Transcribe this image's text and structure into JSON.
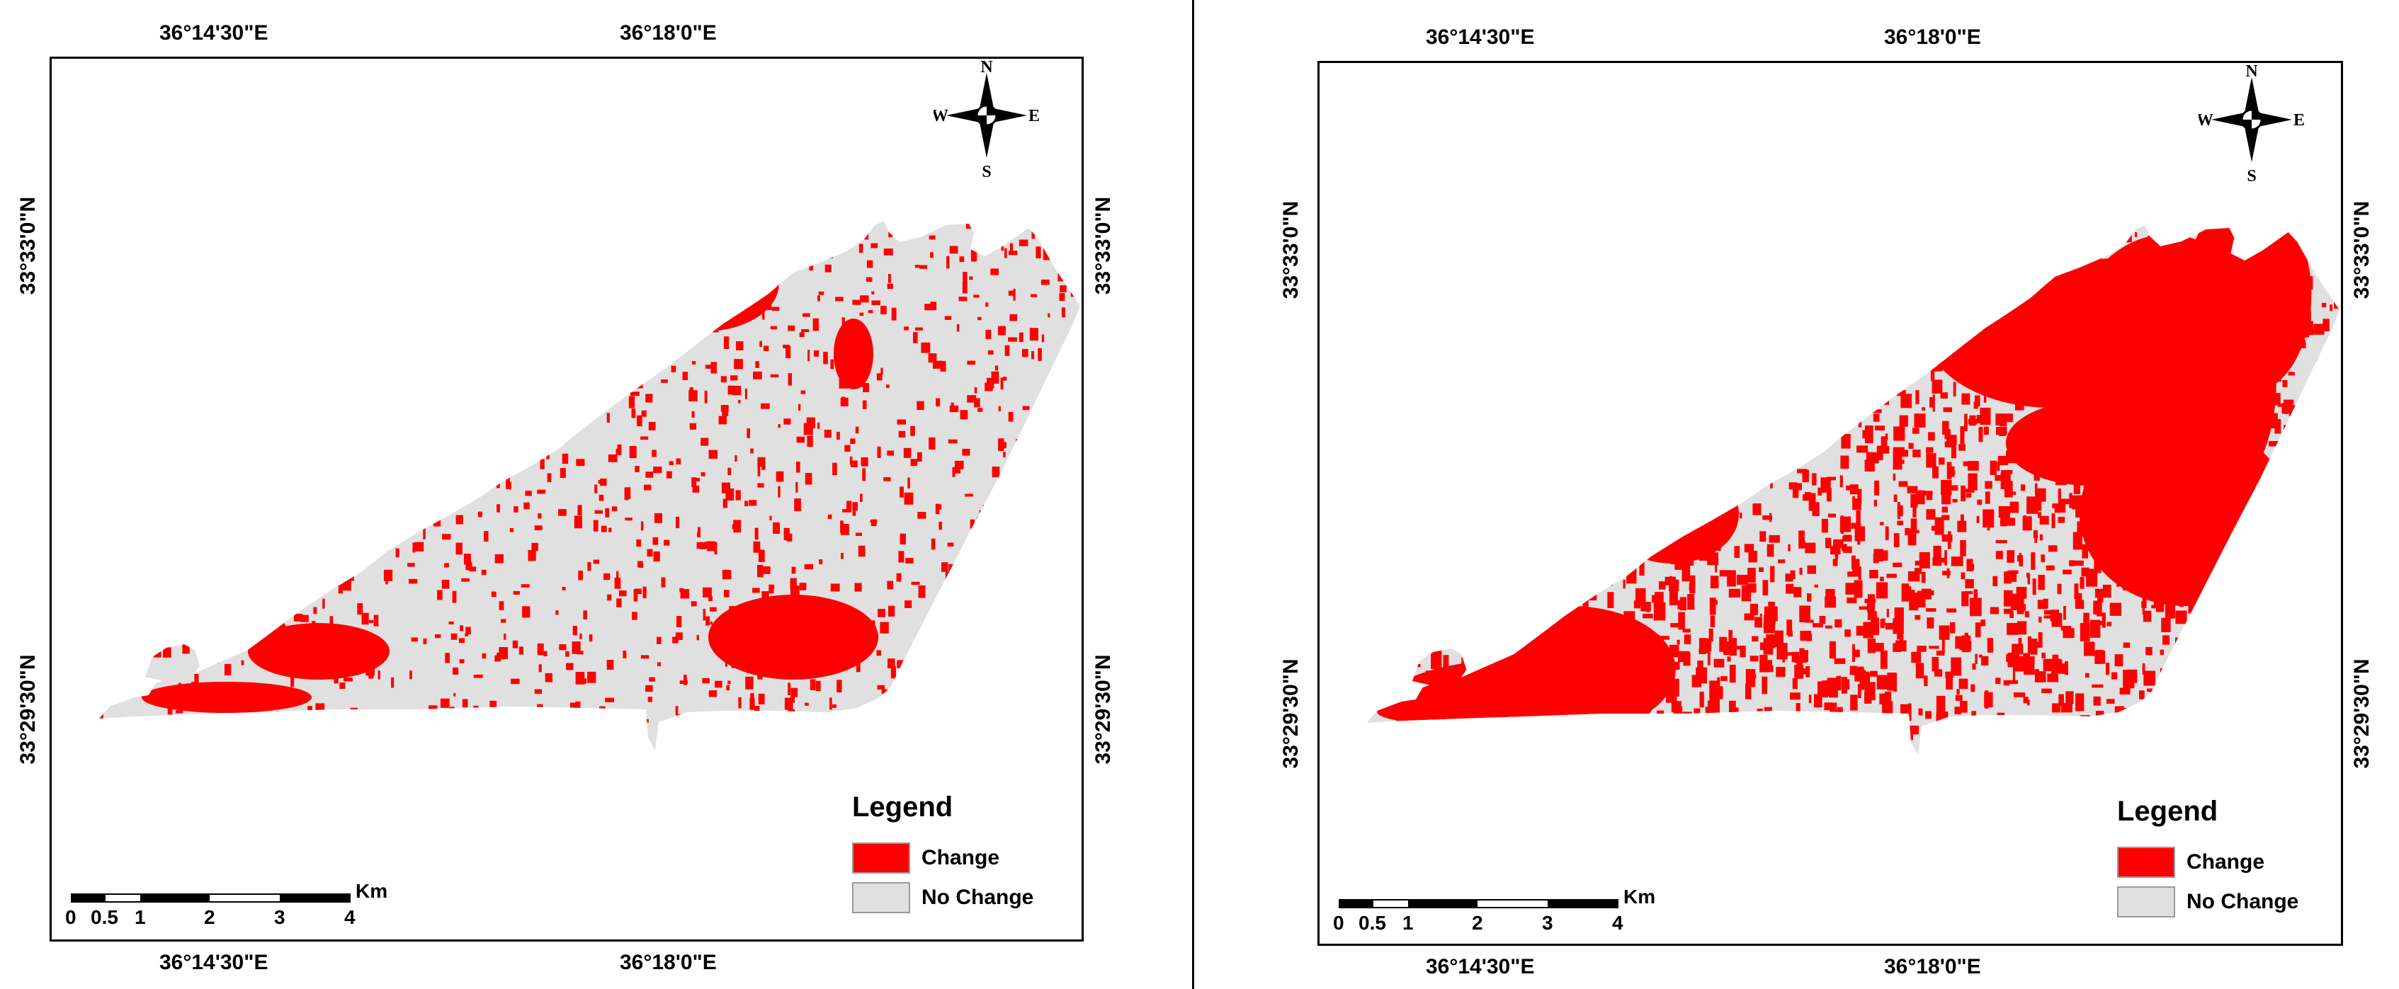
{
  "colors": {
    "change": "#ff0000",
    "no_change": "#e0e0e0",
    "border": "#000000"
  },
  "panels": [
    {
      "coords": {
        "top": [
          "36°14'30\"E",
          "36°18'0\"E"
        ],
        "bottom": [
          "36°14'30\"E",
          "36°18'0\"E"
        ],
        "left": [
          "33°33'0\"N",
          "33°29'30\"N"
        ],
        "right": [
          "33°33'0\"N",
          "33°29'30\"N"
        ]
      },
      "north_arrow": {
        "n": "N",
        "s": "S",
        "e": "E",
        "w": "W"
      },
      "legend": {
        "title": "Legend",
        "change": "Change",
        "no_change": "No Change"
      },
      "scale": {
        "unit": "Km",
        "ticks": [
          "0",
          "0.5",
          "1",
          "2",
          "3",
          "4"
        ]
      },
      "change_extent": "low"
    },
    {
      "coords": {
        "top": [
          "36°14'30\"E",
          "36°18'0\"E"
        ],
        "bottom": [
          "36°14'30\"E",
          "36°18'0\"E"
        ],
        "left": [
          "33°33'0\"N",
          "33°29'30\"N"
        ],
        "right": [
          "33°33'0\"N",
          "33°29'30\"N"
        ]
      },
      "north_arrow": {
        "n": "N",
        "s": "S",
        "e": "E",
        "w": "W"
      },
      "legend": {
        "title": "Legend",
        "change": "Change",
        "no_change": "No Change"
      },
      "scale": {
        "unit": "Km",
        "ticks": [
          "0",
          "0.5",
          "1",
          "2",
          "3",
          "4"
        ]
      },
      "change_extent": "high"
    }
  ]
}
